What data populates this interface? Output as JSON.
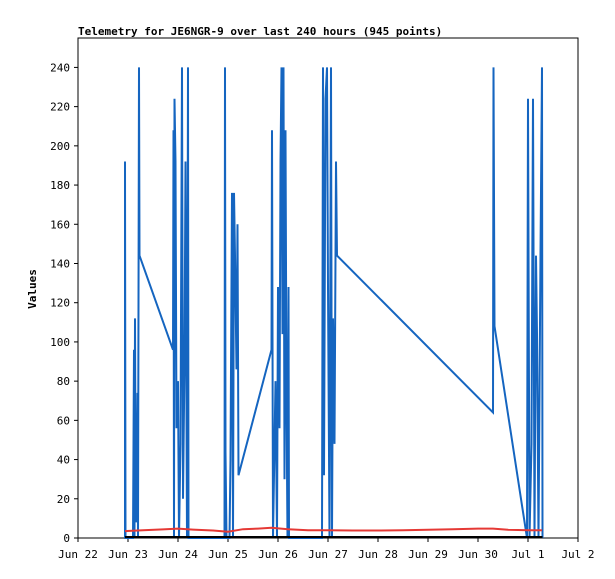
{
  "chart_data": {
    "type": "line",
    "title": "Telemetry for JE6NGR-9 over last 240 hours (945 points)",
    "ylabel": "Values",
    "xlabel": "",
    "ylim": [
      0,
      255
    ],
    "xlim": [
      0,
      10
    ],
    "y_ticks": [
      0,
      20,
      40,
      60,
      80,
      100,
      120,
      140,
      160,
      180,
      200,
      220,
      240
    ],
    "x_ticks": [
      {
        "pos": 0,
        "label": "Jun 22"
      },
      {
        "pos": 1,
        "label": "Jun 23"
      },
      {
        "pos": 2,
        "label": "Jun 24"
      },
      {
        "pos": 3,
        "label": "Jun 25"
      },
      {
        "pos": 4,
        "label": "Jun 26"
      },
      {
        "pos": 5,
        "label": "Jun 27"
      },
      {
        "pos": 6,
        "label": "Jun 28"
      },
      {
        "pos": 7,
        "label": "Jun 29"
      },
      {
        "pos": 8,
        "label": "Jun 30"
      },
      {
        "pos": 9,
        "label": "Jul 1"
      },
      {
        "pos": 10,
        "label": "Jul 2"
      }
    ],
    "grid": false,
    "legend": "none",
    "series": [
      {
        "color": "#1565c0",
        "points": [
          [
            0.94,
            0
          ],
          [
            0.94,
            192
          ],
          [
            0.95,
            0
          ],
          [
            1.1,
            0
          ],
          [
            1.12,
            96
          ],
          [
            1.13,
            0
          ],
          [
            1.14,
            112
          ],
          [
            1.15,
            40
          ],
          [
            1.17,
            8
          ],
          [
            1.19,
            74
          ],
          [
            1.2,
            0
          ],
          [
            1.22,
            240
          ],
          [
            1.23,
            144
          ],
          [
            1.9,
            96
          ],
          [
            1.91,
            208
          ],
          [
            1.92,
            0
          ],
          [
            1.93,
            224
          ],
          [
            1.95,
            192
          ],
          [
            1.97,
            56
          ],
          [
            2.0,
            80
          ],
          [
            2.02,
            0
          ],
          [
            2.05,
            48
          ],
          [
            2.08,
            240
          ],
          [
            2.1,
            20
          ],
          [
            2.13,
            90
          ],
          [
            2.15,
            192
          ],
          [
            2.18,
            0
          ],
          [
            2.2,
            240
          ],
          [
            2.21,
            0
          ],
          [
            2.93,
            0
          ],
          [
            2.94,
            240
          ],
          [
            2.95,
            44
          ],
          [
            2.97,
            0
          ],
          [
            3.03,
            0
          ],
          [
            3.05,
            40
          ],
          [
            3.08,
            176
          ],
          [
            3.1,
            0
          ],
          [
            3.12,
            176
          ],
          [
            3.14,
            144
          ],
          [
            3.17,
            86
          ],
          [
            3.19,
            160
          ],
          [
            3.21,
            32
          ],
          [
            3.87,
            96
          ],
          [
            3.88,
            208
          ],
          [
            3.9,
            0
          ],
          [
            3.95,
            80
          ],
          [
            3.98,
            0
          ],
          [
            4.0,
            128
          ],
          [
            4.03,
            56
          ],
          [
            4.05,
            192
          ],
          [
            4.07,
            240
          ],
          [
            4.09,
            104
          ],
          [
            4.11,
            240
          ],
          [
            4.13,
            30
          ],
          [
            4.15,
            208
          ],
          [
            4.17,
            70
          ],
          [
            4.19,
            0
          ],
          [
            4.21,
            128
          ],
          [
            4.22,
            0
          ],
          [
            4.88,
            0
          ],
          [
            4.9,
            240
          ],
          [
            4.92,
            32
          ],
          [
            4.95,
            224
          ],
          [
            4.98,
            240
          ],
          [
            5.0,
            128
          ],
          [
            5.03,
            0
          ],
          [
            5.06,
            240
          ],
          [
            5.08,
            0
          ],
          [
            5.1,
            112
          ],
          [
            5.13,
            48
          ],
          [
            5.16,
            192
          ],
          [
            5.18,
            144
          ],
          [
            8.3,
            64
          ],
          [
            8.31,
            240
          ],
          [
            8.33,
            108
          ],
          [
            8.98,
            0
          ],
          [
            9.0,
            224
          ],
          [
            9.03,
            0
          ],
          [
            9.07,
            48
          ],
          [
            9.1,
            224
          ],
          [
            9.13,
            0
          ],
          [
            9.16,
            144
          ],
          [
            9.18,
            104
          ],
          [
            9.21,
            0
          ],
          [
            9.25,
            145
          ],
          [
            9.28,
            240
          ],
          [
            9.29,
            0
          ]
        ]
      },
      {
        "color": "#e53935",
        "points": [
          [
            0.94,
            3.5
          ],
          [
            1.3,
            4.0
          ],
          [
            1.7,
            4.4
          ],
          [
            2.0,
            4.8
          ],
          [
            2.3,
            4.3
          ],
          [
            2.7,
            3.8
          ],
          [
            3.0,
            3.2
          ],
          [
            3.3,
            4.5
          ],
          [
            3.6,
            4.8
          ],
          [
            3.87,
            5.2
          ],
          [
            4.2,
            4.5
          ],
          [
            4.6,
            4.0
          ],
          [
            5.0,
            4.0
          ],
          [
            5.5,
            3.8
          ],
          [
            6.0,
            3.8
          ],
          [
            6.5,
            4.0
          ],
          [
            7.0,
            4.2
          ],
          [
            7.5,
            4.5
          ],
          [
            8.0,
            4.8
          ],
          [
            8.3,
            4.8
          ],
          [
            8.6,
            4.2
          ],
          [
            9.0,
            4.0
          ],
          [
            9.28,
            4.0
          ]
        ]
      },
      {
        "color": "#000000",
        "points": [
          [
            0.94,
            0.5
          ],
          [
            9.29,
            0.5
          ]
        ]
      }
    ]
  }
}
